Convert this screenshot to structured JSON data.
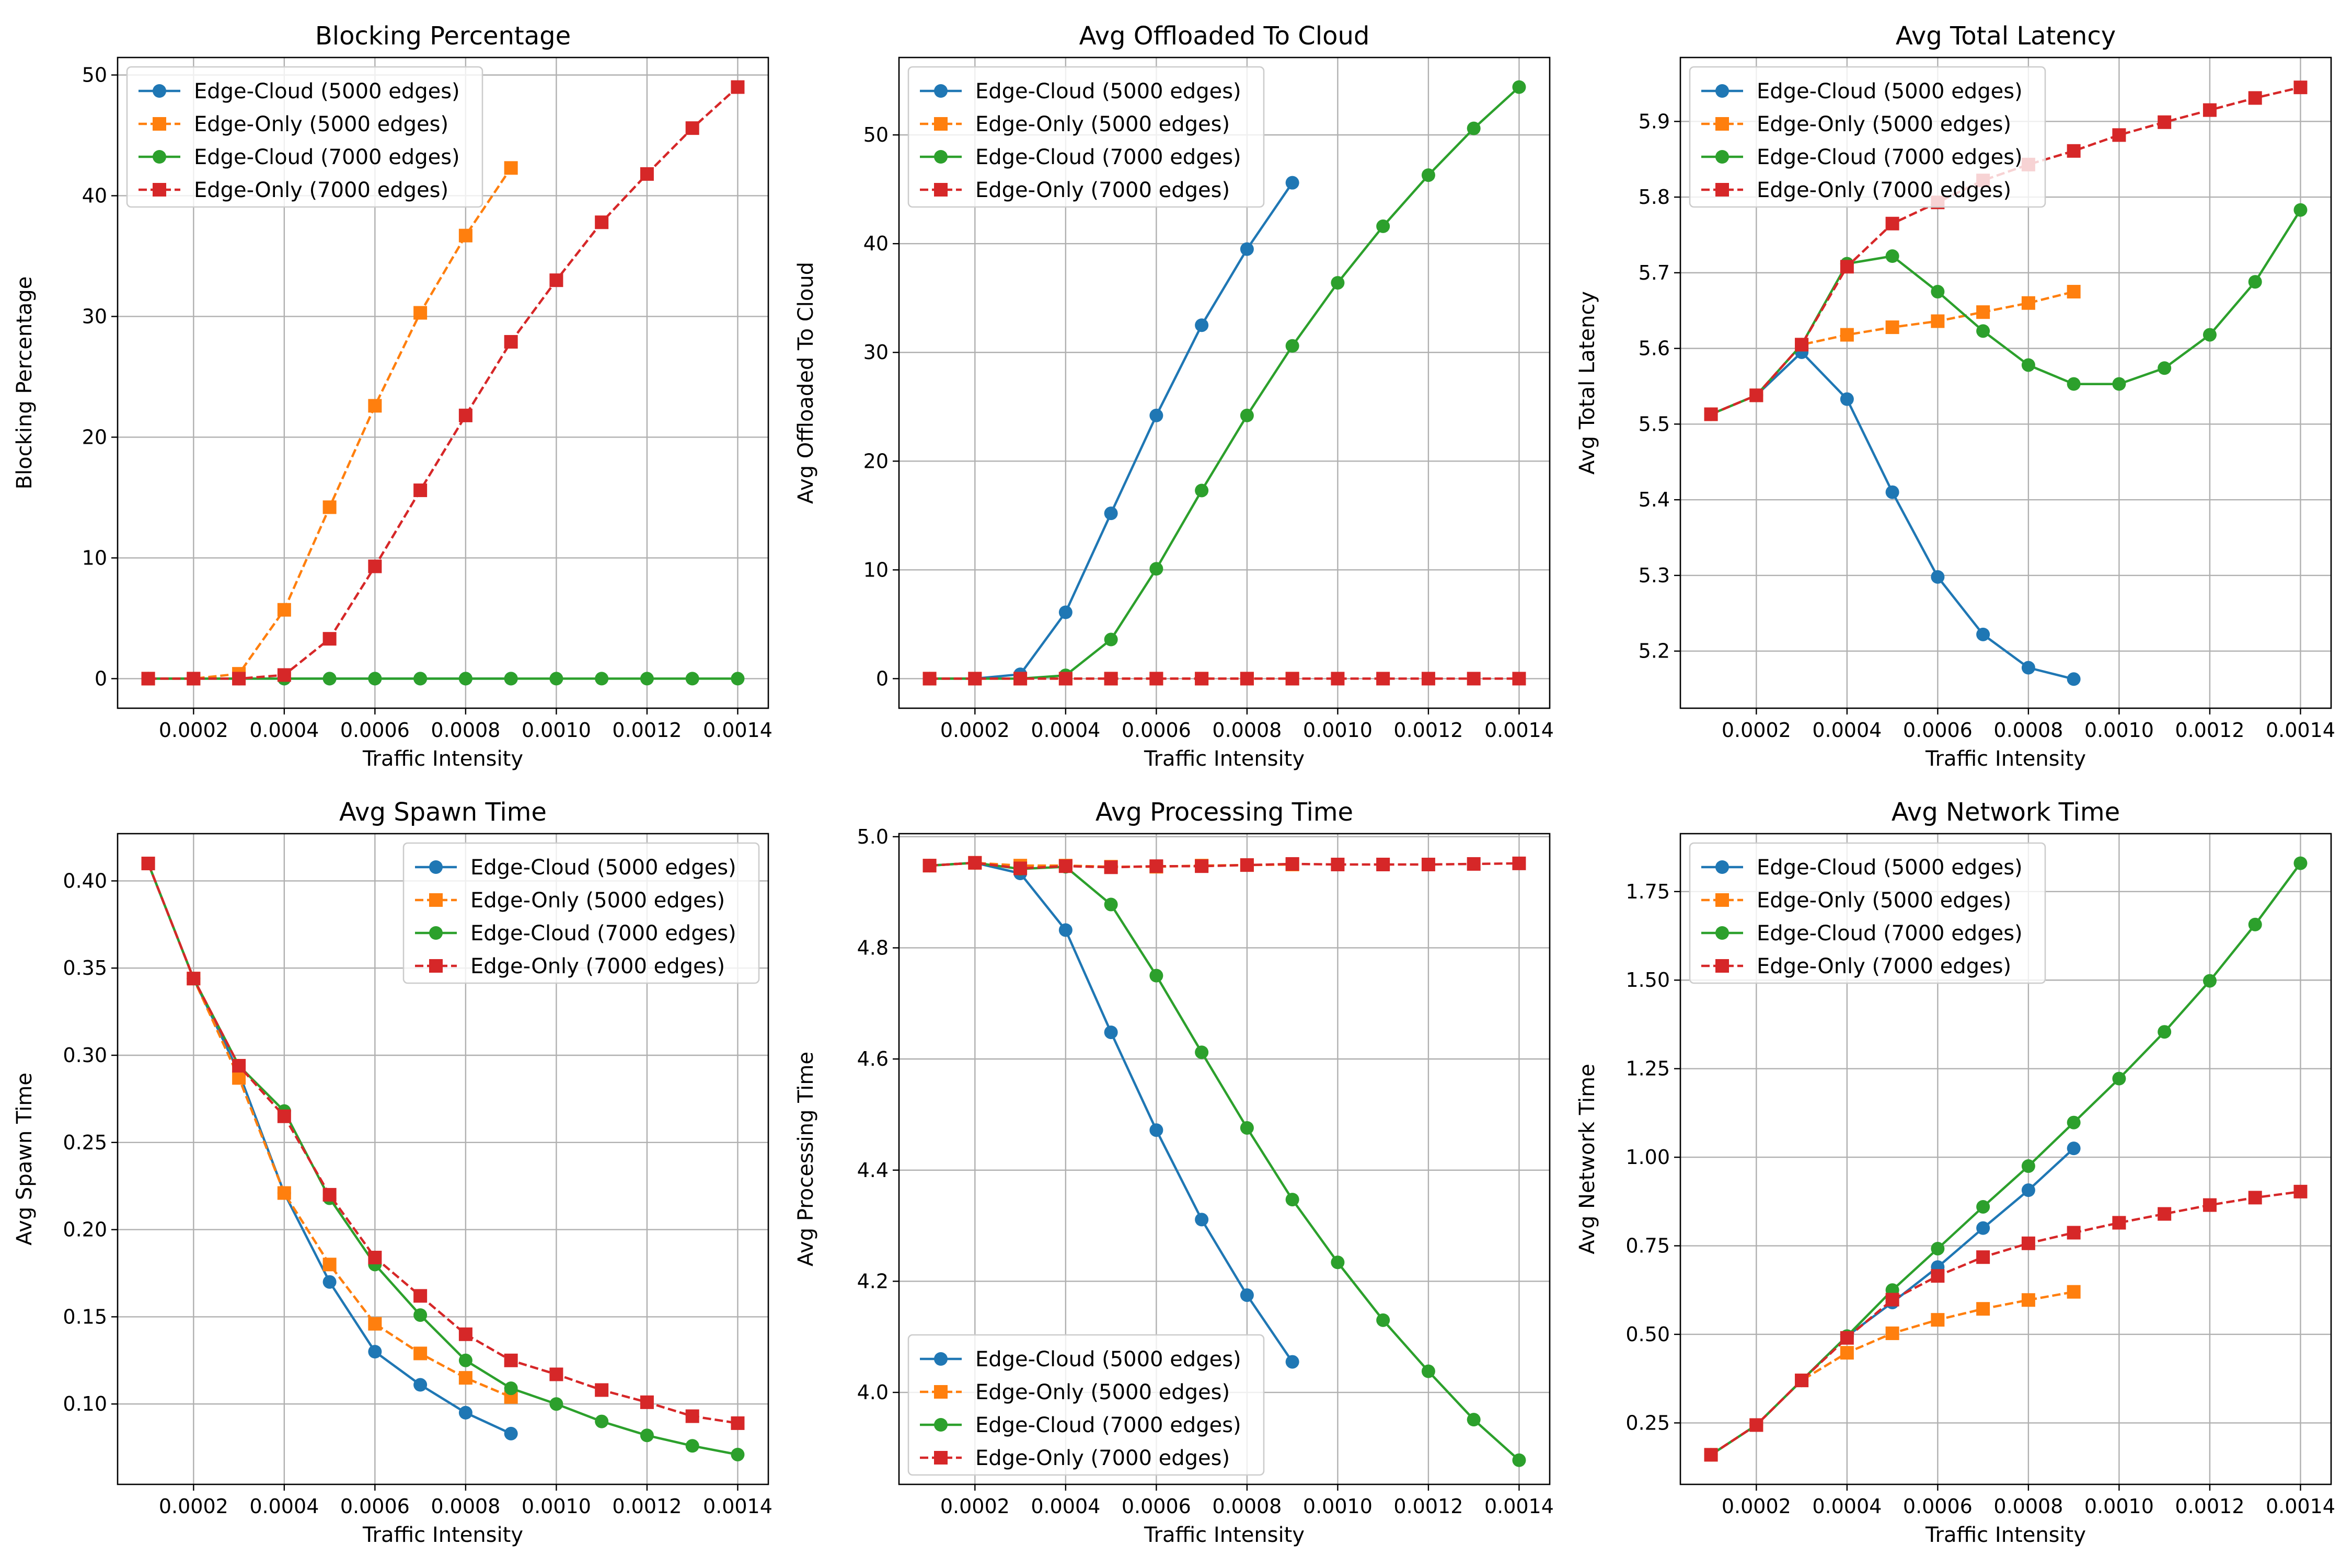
{
  "chart_data": [
    {
      "type": "line",
      "title": "Blocking Percentage",
      "xlabel": "Traffic Intensity",
      "ylabel": "Blocking Percentage",
      "xlim": [
        3.25e-05,
        0.0014675
      ],
      "ylim": [
        -2.45,
        51.45
      ],
      "xticks": [
        "0.0002",
        "0.0004",
        "0.0006",
        "0.0008",
        "0.0010",
        "0.0012",
        "0.0014"
      ],
      "yticks": [
        "0",
        "10",
        "20",
        "30",
        "40",
        "50"
      ],
      "legend": "upper-left",
      "grid": true,
      "series": [
        {
          "name": "Edge-Cloud (5000 edges)",
          "color": "#1f77b4",
          "marker": "circle",
          "linestyle": "solid",
          "x": [
            0.0001,
            0.0002,
            0.0003,
            0.0004,
            0.0005,
            0.0006,
            0.0007,
            0.0008,
            0.0009
          ],
          "y": [
            0,
            0,
            0,
            0,
            0,
            0,
            0,
            0,
            0
          ]
        },
        {
          "name": "Edge-Only (5000 edges)",
          "color": "#ff7f0e",
          "marker": "square",
          "linestyle": "dashed",
          "x": [
            0.0001,
            0.0002,
            0.0003,
            0.0004,
            0.0005,
            0.0006,
            0.0007,
            0.0008,
            0.0009
          ],
          "y": [
            0,
            0,
            0.4,
            5.7,
            14.2,
            22.6,
            30.3,
            36.7,
            42.3
          ]
        },
        {
          "name": "Edge-Cloud (7000 edges)",
          "color": "#2ca02c",
          "marker": "circle",
          "linestyle": "solid",
          "x": [
            0.0001,
            0.0002,
            0.0003,
            0.0004,
            0.0005,
            0.0006,
            0.0007,
            0.0008,
            0.0009,
            0.001,
            0.0011,
            0.0012,
            0.0013,
            0.0014
          ],
          "y": [
            0,
            0,
            0,
            0,
            0,
            0,
            0,
            0,
            0,
            0,
            0,
            0,
            0,
            0
          ]
        },
        {
          "name": "Edge-Only (7000 edges)",
          "color": "#d62728",
          "marker": "square",
          "linestyle": "dashed",
          "x": [
            0.0001,
            0.0002,
            0.0003,
            0.0004,
            0.0005,
            0.0006,
            0.0007,
            0.0008,
            0.0009,
            0.001,
            0.0011,
            0.0012,
            0.0013,
            0.0014
          ],
          "y": [
            0,
            0,
            0,
            0.3,
            3.3,
            9.3,
            15.6,
            21.8,
            27.9,
            33.0,
            37.8,
            41.8,
            45.6,
            49.0
          ]
        }
      ]
    },
    {
      "type": "line",
      "title": "Avg Offloaded To Cloud",
      "xlabel": "Traffic Intensity",
      "ylabel": "Avg Offloaded To Cloud",
      "xlim": [
        3.25e-05,
        0.0014675
      ],
      "ylim": [
        -2.72,
        57.12
      ],
      "xticks": [
        "0.0002",
        "0.0004",
        "0.0006",
        "0.0008",
        "0.0010",
        "0.0012",
        "0.0014"
      ],
      "yticks": [
        "0",
        "10",
        "20",
        "30",
        "40",
        "50"
      ],
      "legend": "upper-left",
      "grid": true,
      "series": [
        {
          "name": "Edge-Cloud (5000 edges)",
          "color": "#1f77b4",
          "marker": "circle",
          "linestyle": "solid",
          "x": [
            0.0001,
            0.0002,
            0.0003,
            0.0004,
            0.0005,
            0.0006,
            0.0007,
            0.0008,
            0.0009
          ],
          "y": [
            0,
            0,
            0.4,
            6.1,
            15.2,
            24.2,
            32.5,
            39.5,
            45.6
          ]
        },
        {
          "name": "Edge-Only (5000 edges)",
          "color": "#ff7f0e",
          "marker": "square",
          "linestyle": "dashed",
          "x": [
            0.0001,
            0.0002,
            0.0003,
            0.0004,
            0.0005,
            0.0006,
            0.0007,
            0.0008,
            0.0009
          ],
          "y": [
            0,
            0,
            0,
            0,
            0,
            0,
            0,
            0,
            0
          ]
        },
        {
          "name": "Edge-Cloud (7000 edges)",
          "color": "#2ca02c",
          "marker": "circle",
          "linestyle": "solid",
          "x": [
            0.0001,
            0.0002,
            0.0003,
            0.0004,
            0.0005,
            0.0006,
            0.0007,
            0.0008,
            0.0009,
            0.001,
            0.0011,
            0.0012,
            0.0013,
            0.0014
          ],
          "y": [
            0,
            0,
            0,
            0.3,
            3.6,
            10.1,
            17.3,
            24.2,
            30.6,
            36.4,
            41.6,
            46.3,
            50.6,
            54.4
          ]
        },
        {
          "name": "Edge-Only (7000 edges)",
          "color": "#d62728",
          "marker": "square",
          "linestyle": "dashed",
          "x": [
            0.0001,
            0.0002,
            0.0003,
            0.0004,
            0.0005,
            0.0006,
            0.0007,
            0.0008,
            0.0009,
            0.001,
            0.0011,
            0.0012,
            0.0013,
            0.0014
          ],
          "y": [
            0,
            0,
            0,
            0,
            0,
            0,
            0,
            0,
            0,
            0,
            0,
            0,
            0,
            0
          ]
        }
      ]
    },
    {
      "type": "line",
      "title": "Avg Total Latency",
      "xlabel": "Traffic Intensity",
      "ylabel": "Avg Total Latency",
      "xlim": [
        3.25e-05,
        0.0014675
      ],
      "ylim": [
        5.1245,
        5.9845
      ],
      "xticks": [
        "0.0002",
        "0.0004",
        "0.0006",
        "0.0008",
        "0.0010",
        "0.0012",
        "0.0014"
      ],
      "yticks": [
        "5.2",
        "5.3",
        "5.4",
        "5.5",
        "5.6",
        "5.7",
        "5.8",
        "5.9"
      ],
      "legend": "upper-left",
      "grid": true,
      "series": [
        {
          "name": "Edge-Cloud (5000 edges)",
          "color": "#1f77b4",
          "marker": "circle",
          "linestyle": "solid",
          "x": [
            0.0001,
            0.0002,
            0.0003,
            0.0004,
            0.0005,
            0.0006,
            0.0007,
            0.0008,
            0.0009
          ],
          "y": [
            5.513,
            5.538,
            5.595,
            5.533,
            5.41,
            5.298,
            5.222,
            5.178,
            5.163
          ]
        },
        {
          "name": "Edge-Only (5000 edges)",
          "color": "#ff7f0e",
          "marker": "square",
          "linestyle": "dashed",
          "x": [
            0.0001,
            0.0002,
            0.0003,
            0.0004,
            0.0005,
            0.0006,
            0.0007,
            0.0008,
            0.0009
          ],
          "y": [
            5.513,
            5.538,
            5.605,
            5.618,
            5.628,
            5.636,
            5.648,
            5.66,
            5.675
          ]
        },
        {
          "name": "Edge-Cloud (7000 edges)",
          "color": "#2ca02c",
          "marker": "circle",
          "linestyle": "solid",
          "x": [
            0.0001,
            0.0002,
            0.0003,
            0.0004,
            0.0005,
            0.0006,
            0.0007,
            0.0008,
            0.0009,
            0.001,
            0.0011,
            0.0012,
            0.0013,
            0.0014
          ],
          "y": [
            5.513,
            5.538,
            5.605,
            5.712,
            5.722,
            5.675,
            5.623,
            5.578,
            5.553,
            5.553,
            5.574,
            5.618,
            5.688,
            5.783
          ]
        },
        {
          "name": "Edge-Only (7000 edges)",
          "color": "#d62728",
          "marker": "square",
          "linestyle": "dashed",
          "x": [
            0.0001,
            0.0002,
            0.0003,
            0.0004,
            0.0005,
            0.0006,
            0.0007,
            0.0008,
            0.0009,
            0.001,
            0.0011,
            0.0012,
            0.0013,
            0.0014
          ],
          "y": [
            5.513,
            5.538,
            5.605,
            5.708,
            5.765,
            5.793,
            5.822,
            5.843,
            5.861,
            5.882,
            5.899,
            5.915,
            5.931,
            5.945
          ]
        }
      ]
    },
    {
      "type": "line",
      "title": "Avg Spawn Time",
      "xlabel": "Traffic Intensity",
      "ylabel": "Avg Spawn Time",
      "xlim": [
        3.25e-05,
        0.0014675
      ],
      "ylim": [
        0.0539,
        0.4271
      ],
      "xticks": [
        "0.0002",
        "0.0004",
        "0.0006",
        "0.0008",
        "0.0010",
        "0.0012",
        "0.0014"
      ],
      "yticks": [
        "0.10",
        "0.15",
        "0.20",
        "0.25",
        "0.30",
        "0.35",
        "0.40"
      ],
      "legend": "upper-right",
      "grid": true,
      "series": [
        {
          "name": "Edge-Cloud (5000 edges)",
          "color": "#1f77b4",
          "marker": "circle",
          "linestyle": "solid",
          "x": [
            0.0001,
            0.0002,
            0.0003,
            0.0004,
            0.0005,
            0.0006,
            0.0007,
            0.0008,
            0.0009
          ],
          "y": [
            0.41,
            0.344,
            0.29,
            0.221,
            0.17,
            0.13,
            0.111,
            0.095,
            0.083
          ]
        },
        {
          "name": "Edge-Only (5000 edges)",
          "color": "#ff7f0e",
          "marker": "square",
          "linestyle": "dashed",
          "x": [
            0.0001,
            0.0002,
            0.0003,
            0.0004,
            0.0005,
            0.0006,
            0.0007,
            0.0008,
            0.0009
          ],
          "y": [
            0.41,
            0.344,
            0.287,
            0.221,
            0.18,
            0.146,
            0.129,
            0.115,
            0.104
          ]
        },
        {
          "name": "Edge-Cloud (7000 edges)",
          "color": "#2ca02c",
          "marker": "circle",
          "linestyle": "solid",
          "x": [
            0.0001,
            0.0002,
            0.0003,
            0.0004,
            0.0005,
            0.0006,
            0.0007,
            0.0008,
            0.0009,
            0.001,
            0.0011,
            0.0012,
            0.0013,
            0.0014
          ],
          "y": [
            0.41,
            0.344,
            0.294,
            0.268,
            0.218,
            0.18,
            0.151,
            0.125,
            0.109,
            0.1,
            0.09,
            0.082,
            0.076,
            0.071
          ]
        },
        {
          "name": "Edge-Only (7000 edges)",
          "color": "#d62728",
          "marker": "square",
          "linestyle": "dashed",
          "x": [
            0.0001,
            0.0002,
            0.0003,
            0.0004,
            0.0005,
            0.0006,
            0.0007,
            0.0008,
            0.0009,
            0.001,
            0.0011,
            0.0012,
            0.0013,
            0.0014
          ],
          "y": [
            0.41,
            0.344,
            0.294,
            0.265,
            0.22,
            0.184,
            0.162,
            0.14,
            0.125,
            0.117,
            0.108,
            0.101,
            0.093,
            0.089
          ]
        }
      ]
    },
    {
      "type": "line",
      "title": "Avg Processing Time",
      "xlabel": "Traffic Intensity",
      "ylabel": "Avg Processing Time",
      "xlim": [
        3.25e-05,
        0.0014675
      ],
      "ylim": [
        3.8345,
        5.0055
      ],
      "xticks": [
        "0.0002",
        "0.0004",
        "0.0006",
        "0.0008",
        "0.0010",
        "0.0012",
        "0.0014"
      ],
      "yticks": [
        "4.0",
        "4.2",
        "4.4",
        "4.6",
        "4.8",
        "5.0"
      ],
      "legend": "lower-left",
      "grid": true,
      "series": [
        {
          "name": "Edge-Cloud (5000 edges)",
          "color": "#1f77b4",
          "marker": "circle",
          "linestyle": "solid",
          "x": [
            0.0001,
            0.0002,
            0.0003,
            0.0004,
            0.0005,
            0.0006,
            0.0007,
            0.0008,
            0.0009
          ],
          "y": [
            4.948,
            4.953,
            4.934,
            4.832,
            4.648,
            4.472,
            4.311,
            4.175,
            4.055
          ]
        },
        {
          "name": "Edge-Only (5000 edges)",
          "color": "#ff7f0e",
          "marker": "square",
          "linestyle": "dashed",
          "x": [
            0.0001,
            0.0002,
            0.0003,
            0.0004,
            0.0005,
            0.0006,
            0.0007,
            0.0008,
            0.0009
          ],
          "y": [
            4.948,
            4.953,
            4.948,
            4.948,
            4.946,
            4.946,
            4.948,
            4.949,
            4.95
          ]
        },
        {
          "name": "Edge-Cloud (7000 edges)",
          "color": "#2ca02c",
          "marker": "circle",
          "linestyle": "solid",
          "x": [
            0.0001,
            0.0002,
            0.0003,
            0.0004,
            0.0005,
            0.0006,
            0.0007,
            0.0008,
            0.0009,
            0.001,
            0.0011,
            0.0012,
            0.0013,
            0.0014
          ],
          "y": [
            4.948,
            4.953,
            4.942,
            4.946,
            4.878,
            4.75,
            4.612,
            4.476,
            4.347,
            4.234,
            4.13,
            4.038,
            3.951,
            3.878
          ]
        },
        {
          "name": "Edge-Only (7000 edges)",
          "color": "#d62728",
          "marker": "square",
          "linestyle": "dashed",
          "x": [
            0.0001,
            0.0002,
            0.0003,
            0.0004,
            0.0005,
            0.0006,
            0.0007,
            0.0008,
            0.0009,
            0.001,
            0.0011,
            0.0012,
            0.0013,
            0.0014
          ],
          "y": [
            4.948,
            4.953,
            4.943,
            4.947,
            4.945,
            4.947,
            4.947,
            4.949,
            4.951,
            4.95,
            4.95,
            4.95,
            4.951,
            4.952
          ]
        }
      ]
    },
    {
      "type": "line",
      "title": "Avg Network Time",
      "xlabel": "Traffic Intensity",
      "ylabel": "Avg Network Time",
      "xlim": [
        3.25e-05,
        0.0014675
      ],
      "ylim": [
        0.0765,
        1.9135
      ],
      "xticks": [
        "0.0002",
        "0.0004",
        "0.0006",
        "0.0008",
        "0.0010",
        "0.0012",
        "0.0014"
      ],
      "yticks": [
        "0.25",
        "0.50",
        "0.75",
        "1.00",
        "1.25",
        "1.50",
        "1.75"
      ],
      "legend": "upper-left",
      "grid": true,
      "series": [
        {
          "name": "Edge-Cloud (5000 edges)",
          "color": "#1f77b4",
          "marker": "circle",
          "linestyle": "solid",
          "x": [
            0.0001,
            0.0002,
            0.0003,
            0.0004,
            0.0005,
            0.0006,
            0.0007,
            0.0008,
            0.0009
          ],
          "y": [
            0.16,
            0.244,
            0.37,
            0.495,
            0.59,
            0.69,
            0.8,
            0.907,
            1.025
          ]
        },
        {
          "name": "Edge-Only (5000 edges)",
          "color": "#ff7f0e",
          "marker": "square",
          "linestyle": "dashed",
          "x": [
            0.0001,
            0.0002,
            0.0003,
            0.0004,
            0.0005,
            0.0006,
            0.0007,
            0.0008,
            0.0009
          ],
          "y": [
            0.16,
            0.244,
            0.37,
            0.448,
            0.503,
            0.541,
            0.572,
            0.597,
            0.62
          ]
        },
        {
          "name": "Edge-Cloud (7000 edges)",
          "color": "#2ca02c",
          "marker": "circle",
          "linestyle": "solid",
          "x": [
            0.0001,
            0.0002,
            0.0003,
            0.0004,
            0.0005,
            0.0006,
            0.0007,
            0.0008,
            0.0009,
            0.001,
            0.0011,
            0.0012,
            0.0013,
            0.0014
          ],
          "y": [
            0.16,
            0.244,
            0.37,
            0.495,
            0.625,
            0.742,
            0.86,
            0.975,
            1.098,
            1.222,
            1.354,
            1.498,
            1.657,
            1.83
          ]
        },
        {
          "name": "Edge-Only (7000 edges)",
          "color": "#d62728",
          "marker": "square",
          "linestyle": "dashed",
          "x": [
            0.0001,
            0.0002,
            0.0003,
            0.0004,
            0.0005,
            0.0006,
            0.0007,
            0.0008,
            0.0009,
            0.001,
            0.0011,
            0.0012,
            0.0013,
            0.0014
          ],
          "y": [
            0.16,
            0.244,
            0.37,
            0.49,
            0.598,
            0.665,
            0.718,
            0.757,
            0.787,
            0.815,
            0.84,
            0.865,
            0.886,
            0.903
          ]
        }
      ]
    }
  ]
}
